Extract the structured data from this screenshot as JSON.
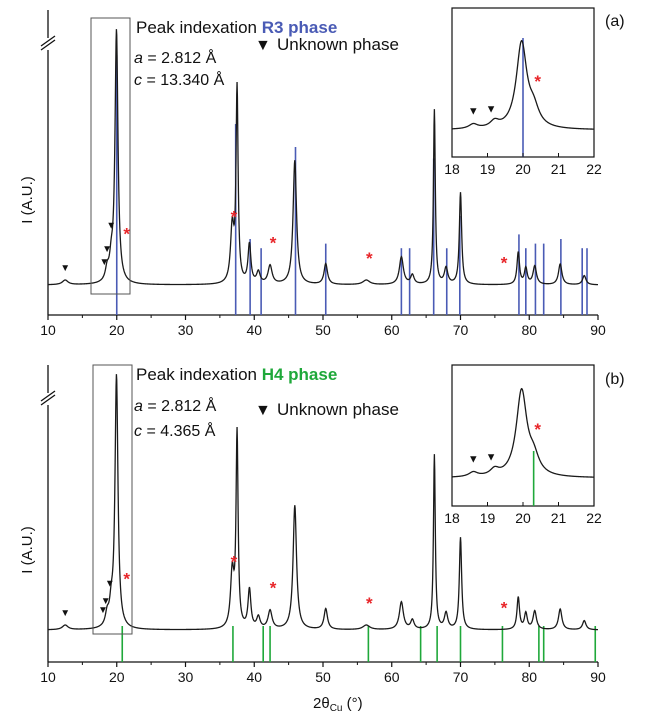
{
  "figure": {
    "xlabel_main": "2θ",
    "xlabel_sub": "Cu",
    "xlabel_unit": " (°)",
    "ylabel": "I (A.U.)",
    "marker_glyph": "▼",
    "star_glyph": "*",
    "colors": {
      "pattern": "#1a1a1a",
      "r3": "#4a5bb5",
      "h4": "#1fa83a",
      "star": "#e8262a"
    }
  },
  "panels": [
    {
      "id": "a",
      "panel_label": "(a)",
      "heading_prefix": "Peak indexation ",
      "phase_name": "R3 phase",
      "phase_color": "#4a5bb5",
      "lattice_a_label": "a",
      "lattice_a_value": " = 2.812 Å",
      "lattice_c_label": "c",
      "lattice_c_value": " = 13.340 Å",
      "unknown_label": "Unknown phase",
      "inset_ticks": [
        "18",
        "19",
        "20",
        "21",
        "22"
      ],
      "ticks": [
        "10",
        "20",
        "30",
        "40",
        "50",
        "60",
        "70",
        "80",
        "90"
      ]
    },
    {
      "id": "b",
      "panel_label": "(b)",
      "heading_prefix": "Peak indexation ",
      "phase_name": "H4 phase",
      "phase_color": "#1fa83a",
      "lattice_a_label": "a",
      "lattice_a_value": " = 2.812 Å",
      "lattice_c_label": "c",
      "lattice_c_value": " = 4.365 Å",
      "unknown_label": "Unknown phase",
      "inset_ticks": [
        "18",
        "19",
        "20",
        "21",
        "22"
      ],
      "ticks": [
        "10",
        "20",
        "30",
        "40",
        "50",
        "60",
        "70",
        "80",
        "90"
      ]
    }
  ],
  "chart_data": [
    {
      "type": "line",
      "panel": "a",
      "xlabel": "",
      "ylabel": "I (A.U.)",
      "xlim": [
        10,
        90
      ],
      "y_axis_break": true,
      "peaks": [
        {
          "x": 12.5,
          "h": 0.02,
          "w": 0.5
        },
        {
          "x": 18.6,
          "h": 0.05,
          "w": 0.3
        },
        {
          "x": 19.2,
          "h": 0.08,
          "w": 0.3
        },
        {
          "x": 19.96,
          "h": 1.1,
          "w": 0.26
        },
        {
          "x": 36.8,
          "h": 0.24,
          "w": 0.3
        },
        {
          "x": 37.5,
          "h": 0.84,
          "w": 0.18
        },
        {
          "x": 39.3,
          "h": 0.17,
          "w": 0.25
        },
        {
          "x": 40.6,
          "h": 0.05,
          "w": 0.3
        },
        {
          "x": 42.3,
          "h": 0.08,
          "w": 0.35
        },
        {
          "x": 45.9,
          "h": 0.54,
          "w": 0.3
        },
        {
          "x": 50.4,
          "h": 0.09,
          "w": 0.3
        },
        {
          "x": 56.3,
          "h": 0.02,
          "w": 0.6
        },
        {
          "x": 61.4,
          "h": 0.12,
          "w": 0.35
        },
        {
          "x": 63.0,
          "h": 0.04,
          "w": 0.3
        },
        {
          "x": 66.2,
          "h": 0.76,
          "w": 0.16
        },
        {
          "x": 67.9,
          "h": 0.07,
          "w": 0.3
        },
        {
          "x": 70.0,
          "h": 0.4,
          "w": 0.2
        },
        {
          "x": 78.4,
          "h": 0.14,
          "w": 0.22
        },
        {
          "x": 79.5,
          "h": 0.07,
          "w": 0.25
        },
        {
          "x": 80.8,
          "h": 0.08,
          "w": 0.3
        },
        {
          "x": 84.5,
          "h": 0.09,
          "w": 0.3
        },
        {
          "x": 88.0,
          "h": 0.04,
          "w": 0.3
        }
      ],
      "reference_lines": [
        {
          "x": 20.0,
          "h": 1.0
        },
        {
          "x": 37.3,
          "h": 0.7
        },
        {
          "x": 39.4,
          "h": 0.2
        },
        {
          "x": 41.0,
          "h": 0.16
        },
        {
          "x": 46.0,
          "h": 0.6
        },
        {
          "x": 50.4,
          "h": 0.18
        },
        {
          "x": 61.4,
          "h": 0.16
        },
        {
          "x": 62.6,
          "h": 0.16
        },
        {
          "x": 66.1,
          "h": 0.55
        },
        {
          "x": 68.0,
          "h": 0.16
        },
        {
          "x": 69.9,
          "h": 0.3
        },
        {
          "x": 78.5,
          "h": 0.22
        },
        {
          "x": 79.5,
          "h": 0.16
        },
        {
          "x": 80.9,
          "h": 0.18
        },
        {
          "x": 82.1,
          "h": 0.18
        },
        {
          "x": 84.6,
          "h": 0.2
        },
        {
          "x": 87.7,
          "h": 0.16
        },
        {
          "x": 88.4,
          "h": 0.16
        }
      ],
      "unknown_markers": [
        12.5,
        18.2,
        18.6,
        19.2
      ],
      "star_markers": [
        21.0,
        36.6,
        42.3,
        56.3,
        75.9
      ],
      "inset": {
        "xlim": [
          18,
          22
        ],
        "peaks": [
          {
            "x": 18.6,
            "h": 0.05,
            "w": 0.15
          },
          {
            "x": 19.2,
            "h": 0.07,
            "w": 0.15
          },
          {
            "x": 19.96,
            "h": 0.95,
            "w": 0.18
          },
          {
            "x": 20.3,
            "h": 0.18,
            "w": 0.18
          }
        ],
        "reference_line": 20.0,
        "unknown_markers": [
          18.6,
          19.1
        ],
        "star_marker": 20.3
      }
    },
    {
      "type": "line",
      "panel": "b",
      "xlabel": "2θCu (°)",
      "ylabel": "I (A.U.)",
      "xlim": [
        10,
        90
      ],
      "y_axis_break": true,
      "peaks": [
        {
          "x": 12.5,
          "h": 0.02,
          "w": 0.5
        },
        {
          "x": 18.6,
          "h": 0.05,
          "w": 0.3
        },
        {
          "x": 19.2,
          "h": 0.08,
          "w": 0.3
        },
        {
          "x": 19.96,
          "h": 1.1,
          "w": 0.26
        },
        {
          "x": 36.8,
          "h": 0.24,
          "w": 0.3
        },
        {
          "x": 37.5,
          "h": 0.84,
          "w": 0.18
        },
        {
          "x": 39.3,
          "h": 0.17,
          "w": 0.25
        },
        {
          "x": 40.6,
          "h": 0.05,
          "w": 0.3
        },
        {
          "x": 42.3,
          "h": 0.08,
          "w": 0.35
        },
        {
          "x": 45.9,
          "h": 0.54,
          "w": 0.3
        },
        {
          "x": 50.4,
          "h": 0.09,
          "w": 0.3
        },
        {
          "x": 56.3,
          "h": 0.02,
          "w": 0.6
        },
        {
          "x": 61.4,
          "h": 0.12,
          "w": 0.35
        },
        {
          "x": 63.0,
          "h": 0.04,
          "w": 0.3
        },
        {
          "x": 66.2,
          "h": 0.76,
          "w": 0.16
        },
        {
          "x": 67.9,
          "h": 0.07,
          "w": 0.3
        },
        {
          "x": 70.0,
          "h": 0.4,
          "w": 0.2
        },
        {
          "x": 78.4,
          "h": 0.14,
          "w": 0.22
        },
        {
          "x": 79.5,
          "h": 0.07,
          "w": 0.25
        },
        {
          "x": 80.8,
          "h": 0.08,
          "w": 0.3
        },
        {
          "x": 84.5,
          "h": 0.09,
          "w": 0.3
        },
        {
          "x": 88.0,
          "h": 0.04,
          "w": 0.3
        }
      ],
      "reference_lines": [
        {
          "x": 20.8,
          "h": 0.2
        },
        {
          "x": 36.9,
          "h": 0.2
        },
        {
          "x": 41.3,
          "h": 0.2
        },
        {
          "x": 42.3,
          "h": 0.2
        },
        {
          "x": 56.6,
          "h": 0.2
        },
        {
          "x": 64.2,
          "h": 0.2
        },
        {
          "x": 66.6,
          "h": 0.2
        },
        {
          "x": 70.0,
          "h": 0.2
        },
        {
          "x": 76.1,
          "h": 0.2
        },
        {
          "x": 81.4,
          "h": 0.2
        },
        {
          "x": 82.1,
          "h": 0.2
        },
        {
          "x": 89.6,
          "h": 0.2
        }
      ],
      "unknown_markers": [
        12.5,
        18.0,
        18.4,
        19.0
      ],
      "star_markers": [
        21.0,
        36.6,
        42.3,
        56.3,
        75.9
      ],
      "inset": {
        "xlim": [
          18,
          22
        ],
        "peaks": [
          {
            "x": 18.6,
            "h": 0.05,
            "w": 0.15
          },
          {
            "x": 19.2,
            "h": 0.07,
            "w": 0.15
          },
          {
            "x": 19.96,
            "h": 0.95,
            "w": 0.18
          },
          {
            "x": 20.3,
            "h": 0.18,
            "w": 0.18
          }
        ],
        "reference_line": 20.3,
        "unknown_markers": [
          18.6,
          19.1
        ],
        "star_marker": 20.3
      }
    }
  ]
}
